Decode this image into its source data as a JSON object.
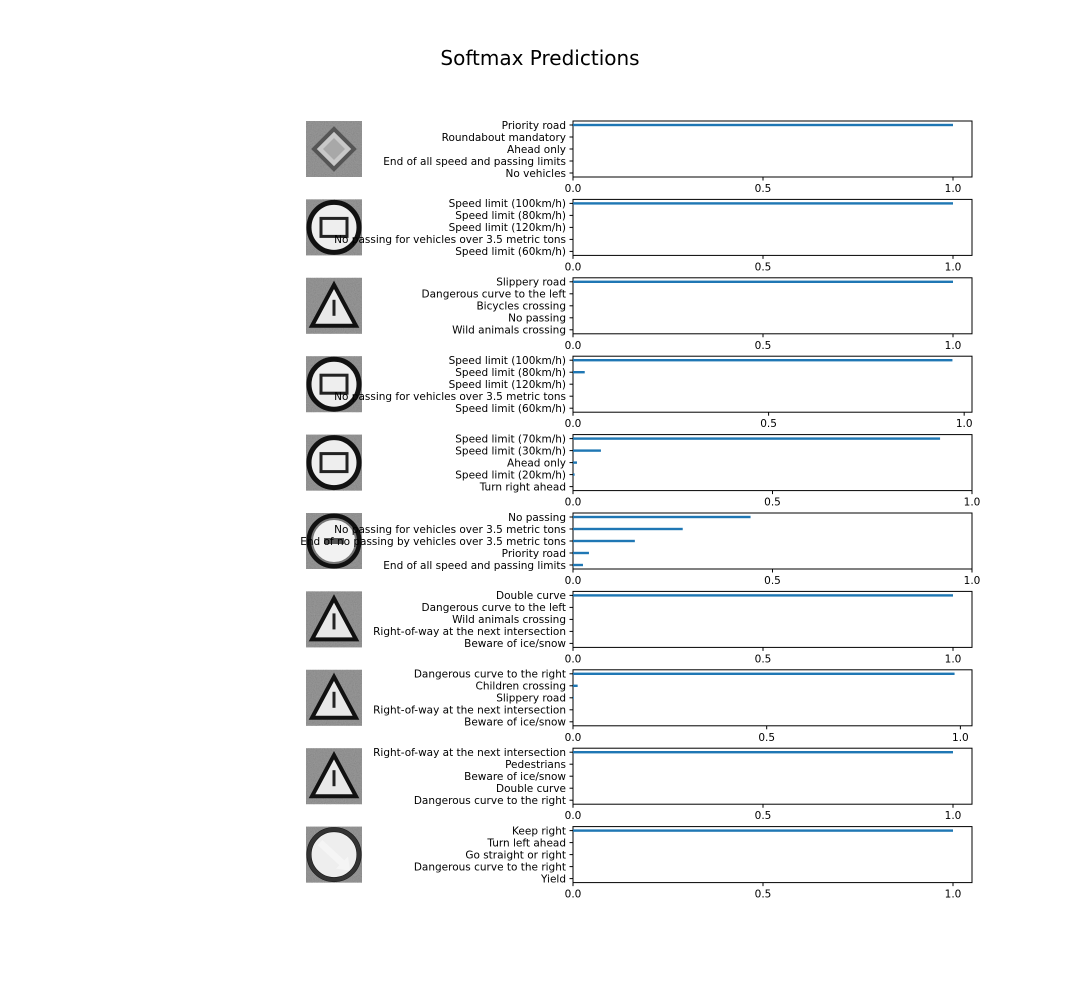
{
  "title": "Softmax Predictions",
  "colors": {
    "bar": "#1f77b4",
    "axis": "#000000",
    "background": "#ffffff"
  },
  "chart_data": [
    {
      "type": "bar",
      "orientation": "horizontal",
      "image": "priority-road-sign-thumbnail",
      "categories": [
        "Priority road",
        "Roundabout mandatory",
        "Ahead only",
        "End of all speed and passing limits",
        "No vehicles"
      ],
      "values": [
        1.0,
        0.0,
        0.0,
        0.0,
        0.0
      ],
      "xlim": [
        0,
        1.05
      ],
      "xticks": [
        "0.0",
        "0.5",
        "1.0"
      ]
    },
    {
      "type": "bar",
      "orientation": "horizontal",
      "image": "speed-limit-100-sign-thumbnail",
      "categories": [
        "Speed limit (100km/h)",
        "Speed limit (80km/h)",
        "Speed limit (120km/h)",
        "No passing for vehicles over 3.5 metric tons",
        "Speed limit (60km/h)"
      ],
      "values": [
        1.0,
        0.0,
        0.0,
        0.0,
        0.0
      ],
      "xlim": [
        0,
        1.05
      ],
      "xticks": [
        "0.0",
        "0.5",
        "1.0"
      ]
    },
    {
      "type": "bar",
      "orientation": "horizontal",
      "image": "slippery-road-sign-thumbnail",
      "categories": [
        "Slippery road",
        "Dangerous curve to the left",
        "Bicycles crossing",
        "No passing",
        "Wild animals crossing"
      ],
      "values": [
        1.0,
        0.0,
        0.0,
        0.0,
        0.0
      ],
      "xlim": [
        0,
        1.05
      ],
      "xticks": [
        "0.0",
        "0.5",
        "1.0"
      ]
    },
    {
      "type": "bar",
      "orientation": "horizontal",
      "image": "speed-limit-sign-thumbnail",
      "categories": [
        "Speed limit (100km/h)",
        "Speed limit (80km/h)",
        "Speed limit (120km/h)",
        "No passing for vehicles over 3.5 metric tons",
        "Speed limit (60km/h)"
      ],
      "values": [
        0.97,
        0.03,
        0.0,
        0.0,
        0.0
      ],
      "xlim": [
        0,
        1.02
      ],
      "xticks": [
        "0.0",
        "0.5",
        "1.0"
      ]
    },
    {
      "type": "bar",
      "orientation": "horizontal",
      "image": "speed-limit-70-sign-thumbnail",
      "categories": [
        "Speed limit (70km/h)",
        "Speed limit (30km/h)",
        "Ahead only",
        "Speed limit (20km/h)",
        "Turn right ahead"
      ],
      "values": [
        0.92,
        0.07,
        0.01,
        0.004,
        0.0
      ],
      "xlim": [
        0,
        1.0
      ],
      "xticks": [
        "0.0",
        "0.5",
        "1.0"
      ]
    },
    {
      "type": "bar",
      "orientation": "horizontal",
      "image": "no-passing-sign-thumbnail",
      "categories": [
        "No passing",
        "No passing for vehicles over 3.5 metric tons",
        "End of no passing by vehicles over 3.5 metric tons",
        "Priority road",
        "End of all speed and passing limits"
      ],
      "values": [
        0.445,
        0.275,
        0.155,
        0.04,
        0.025
      ],
      "xlim": [
        0,
        1.0
      ],
      "xticks": [
        "0.0",
        "0.5",
        "1.0"
      ]
    },
    {
      "type": "bar",
      "orientation": "horizontal",
      "image": "double-curve-sign-thumbnail",
      "categories": [
        "Double curve",
        "Dangerous curve to the left",
        "Wild animals crossing",
        "Right-of-way at the next intersection",
        "Beware of ice/snow"
      ],
      "values": [
        1.0,
        0.0,
        0.0,
        0.0,
        0.0
      ],
      "xlim": [
        0,
        1.05
      ],
      "xticks": [
        "0.0",
        "0.5",
        "1.0"
      ]
    },
    {
      "type": "bar",
      "orientation": "horizontal",
      "image": "dangerous-curve-right-sign-thumbnail",
      "categories": [
        "Dangerous curve to the right",
        "Children crossing",
        "Slippery road",
        "Right-of-way at the next intersection",
        "Beware of ice/snow"
      ],
      "values": [
        0.985,
        0.012,
        0.002,
        0.0,
        0.0
      ],
      "xlim": [
        0,
        1.03
      ],
      "xticks": [
        "0.0",
        "0.5",
        "1.0"
      ]
    },
    {
      "type": "bar",
      "orientation": "horizontal",
      "image": "right-of-way-sign-thumbnail",
      "categories": [
        "Right-of-way at the next intersection",
        "Pedestrians",
        "Beware of ice/snow",
        "Double curve",
        "Dangerous curve to the right"
      ],
      "values": [
        1.0,
        0.0,
        0.0,
        0.0,
        0.0
      ],
      "xlim": [
        0,
        1.05
      ],
      "xticks": [
        "0.0",
        "0.5",
        "1.0"
      ]
    },
    {
      "type": "bar",
      "orientation": "horizontal",
      "image": "keep-right-sign-thumbnail",
      "categories": [
        "Keep right",
        "Turn left ahead",
        "Go straight or right",
        "Dangerous curve to the right",
        "Yield"
      ],
      "values": [
        1.0,
        0.0,
        0.0,
        0.0,
        0.0
      ],
      "xlim": [
        0,
        1.05
      ],
      "xticks": [
        "0.0",
        "0.5",
        "1.0"
      ]
    }
  ]
}
